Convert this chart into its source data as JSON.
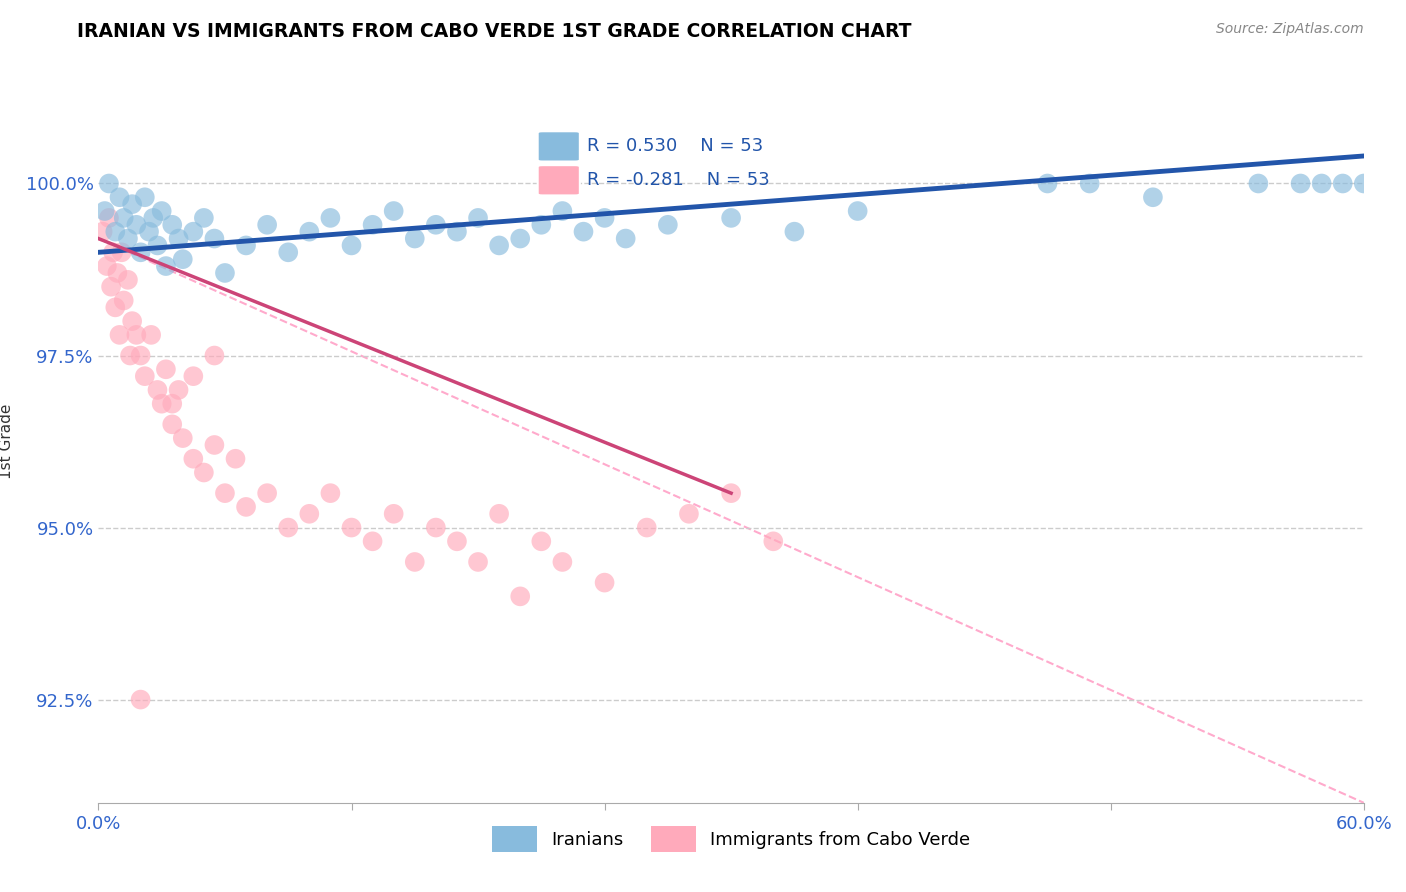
{
  "title": "IRANIAN VS IMMIGRANTS FROM CABO VERDE 1ST GRADE CORRELATION CHART",
  "source": "Source: ZipAtlas.com",
  "xlabel_iranians": "Iranians",
  "xlabel_caboverde": "Immigrants from Cabo Verde",
  "ylabel": "1st Grade",
  "xlim": [
    0.0,
    60.0
  ],
  "ylim": [
    91.0,
    101.5
  ],
  "yticks": [
    92.5,
    95.0,
    97.5,
    100.0
  ],
  "R_iranian": 0.53,
  "R_caboverde": -0.281,
  "N": 53,
  "blue_color": "#88bbdd",
  "pink_color": "#ffaabb",
  "blue_line_color": "#2255aa",
  "pink_line_color": "#cc4477",
  "pink_dash_color": "#ffaacc",
  "iranian_x": [
    0.3,
    0.5,
    0.8,
    1.0,
    1.2,
    1.4,
    1.6,
    1.8,
    2.0,
    2.2,
    2.4,
    2.6,
    2.8,
    3.0,
    3.2,
    3.5,
    3.8,
    4.0,
    4.5,
    5.0,
    5.5,
    6.0,
    7.0,
    8.0,
    9.0,
    10.0,
    11.0,
    12.0,
    13.0,
    14.0,
    15.0,
    16.0,
    17.0,
    18.0,
    19.0,
    20.0,
    21.0,
    22.0,
    23.0,
    24.0,
    25.0,
    27.0,
    30.0,
    33.0,
    36.0,
    45.0,
    47.0,
    50.0,
    55.0,
    57.0,
    58.0,
    59.0,
    60.0
  ],
  "iranian_y": [
    99.6,
    100.0,
    99.3,
    99.8,
    99.5,
    99.2,
    99.7,
    99.4,
    99.0,
    99.8,
    99.3,
    99.5,
    99.1,
    99.6,
    98.8,
    99.4,
    99.2,
    98.9,
    99.3,
    99.5,
    99.2,
    98.7,
    99.1,
    99.4,
    99.0,
    99.3,
    99.5,
    99.1,
    99.4,
    99.6,
    99.2,
    99.4,
    99.3,
    99.5,
    99.1,
    99.2,
    99.4,
    99.6,
    99.3,
    99.5,
    99.2,
    99.4,
    99.5,
    99.3,
    99.6,
    100.0,
    100.0,
    99.8,
    100.0,
    100.0,
    100.0,
    100.0,
    100.0
  ],
  "caboverde_x": [
    0.2,
    0.4,
    0.5,
    0.6,
    0.7,
    0.8,
    0.9,
    1.0,
    1.1,
    1.2,
    1.4,
    1.5,
    1.6,
    1.8,
    2.0,
    2.2,
    2.5,
    2.8,
    3.0,
    3.2,
    3.5,
    3.8,
    4.0,
    4.5,
    5.0,
    5.5,
    6.0,
    6.5,
    7.0,
    8.0,
    9.0,
    10.0,
    11.0,
    12.0,
    13.0,
    14.0,
    15.0,
    16.0,
    17.0,
    18.0,
    19.0,
    20.0,
    21.0,
    22.0,
    24.0,
    26.0,
    28.0,
    30.0,
    32.0,
    2.0,
    3.5,
    4.5,
    5.5
  ],
  "caboverde_y": [
    99.3,
    98.8,
    99.5,
    98.5,
    99.0,
    98.2,
    98.7,
    97.8,
    99.0,
    98.3,
    98.6,
    97.5,
    98.0,
    97.8,
    97.5,
    97.2,
    97.8,
    97.0,
    96.8,
    97.3,
    96.5,
    97.0,
    96.3,
    96.0,
    95.8,
    96.2,
    95.5,
    96.0,
    95.3,
    95.5,
    95.0,
    95.2,
    95.5,
    95.0,
    94.8,
    95.2,
    94.5,
    95.0,
    94.8,
    94.5,
    95.2,
    94.0,
    94.8,
    94.5,
    94.2,
    95.0,
    95.2,
    95.5,
    94.8,
    92.5,
    96.8,
    97.2,
    97.5
  ],
  "blue_line_x0": 0.0,
  "blue_line_x1": 60.0,
  "blue_line_y0": 99.0,
  "blue_line_y1": 100.4,
  "pink_line_x0": 0.0,
  "pink_line_x1": 30.0,
  "pink_line_y0": 99.2,
  "pink_line_y1": 95.5,
  "pink_dash_x0": 0.0,
  "pink_dash_x1": 60.0,
  "pink_dash_y0": 99.2,
  "pink_dash_y1": 91.0
}
